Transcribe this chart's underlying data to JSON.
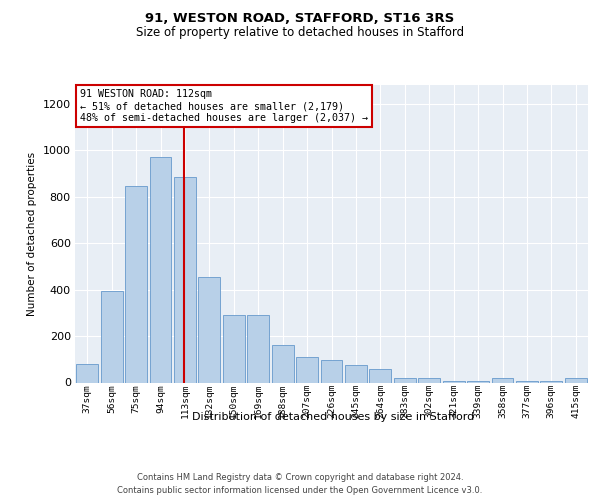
{
  "title1": "91, WESTON ROAD, STAFFORD, ST16 3RS",
  "title2": "Size of property relative to detached houses in Stafford",
  "xlabel": "Distribution of detached houses by size in Stafford",
  "ylabel": "Number of detached properties",
  "categories": [
    "37sqm",
    "56sqm",
    "75sqm",
    "94sqm",
    "113sqm",
    "132sqm",
    "150sqm",
    "169sqm",
    "188sqm",
    "207sqm",
    "226sqm",
    "245sqm",
    "264sqm",
    "283sqm",
    "302sqm",
    "321sqm",
    "339sqm",
    "358sqm",
    "377sqm",
    "396sqm",
    "415sqm"
  ],
  "values": [
    80,
    395,
    845,
    970,
    885,
    455,
    290,
    290,
    160,
    110,
    95,
    75,
    60,
    20,
    18,
    5,
    5,
    18,
    5,
    5,
    18
  ],
  "bar_color": "#b8d0e8",
  "bar_edge_color": "#6699cc",
  "vline_color": "#cc0000",
  "vline_index": 4,
  "annotation_text": "91 WESTON ROAD: 112sqm\n← 51% of detached houses are smaller (2,179)\n48% of semi-detached houses are larger (2,037) →",
  "footnote1": "Contains HM Land Registry data © Crown copyright and database right 2024.",
  "footnote2": "Contains public sector information licensed under the Open Government Licence v3.0.",
  "ylim": [
    0,
    1280
  ],
  "yticks": [
    0,
    200,
    400,
    600,
    800,
    1000,
    1200
  ],
  "bg_color": "#e8eef5",
  "fig_bg": "#ffffff",
  "grid_color": "#ffffff"
}
